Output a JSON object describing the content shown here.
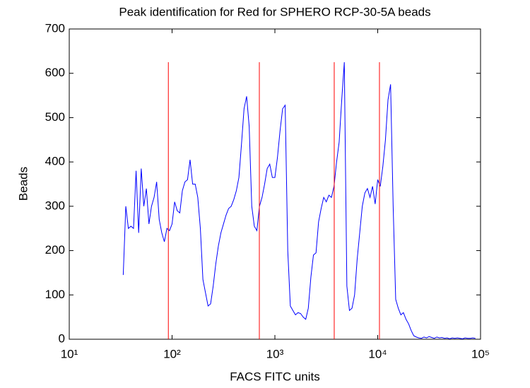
{
  "chart_data": {
    "type": "line",
    "title": "Peak identification for Red for SPHERO RCP-30-5A beads",
    "xlabel": "FACS FITC units",
    "ylabel": "Beads",
    "xscale": "log",
    "xlim": [
      10,
      100000
    ],
    "ylim": [
      0,
      700
    ],
    "xticks": [
      {
        "value": 10,
        "label": "10¹"
      },
      {
        "value": 100,
        "label": "10²"
      },
      {
        "value": 1000,
        "label": "10³"
      },
      {
        "value": 10000,
        "label": "10⁴"
      },
      {
        "value": 100000,
        "label": "10⁵"
      }
    ],
    "yticks": [
      0,
      100,
      200,
      300,
      400,
      500,
      600,
      700
    ],
    "grid": false,
    "x": [
      33.5,
      35.48,
      37.58,
      39.81,
      42.17,
      44.67,
      47.32,
      50.12,
      53.09,
      56.23,
      59.57,
      63.1,
      66.83,
      70.79,
      74.99,
      79.43,
      84.14,
      89.13,
      94.41,
      100,
      105.9,
      112.2,
      118.9,
      125.9,
      133.4,
      141.3,
      149.6,
      158.5,
      167.9,
      177.8,
      188.4,
      199.5,
      211.3,
      223.9,
      237.1,
      251.2,
      266.1,
      281.8,
      298.5,
      316.2,
      335,
      354.8,
      375.8,
      398.1,
      421.7,
      446.7,
      473.2,
      501.2,
      530.9,
      562.3,
      595.7,
      631,
      668.3,
      707.9,
      749.9,
      794.3,
      841.4,
      891.3,
      944.1,
      1000,
      1059,
      1122,
      1189,
      1259,
      1334,
      1413,
      1496,
      1585,
      1679,
      1778,
      1884,
      1995,
      2113,
      2239,
      2371,
      2512,
      2661,
      2818,
      2985,
      3162,
      3350,
      3548,
      3758,
      3981,
      4217,
      4467,
      4732,
      5012,
      5309,
      5623,
      5957,
      6310,
      6683,
      7079,
      7499,
      7943,
      8414,
      8913,
      9441,
      10000,
      10590,
      11220,
      11890,
      12590,
      13340,
      14130,
      14960,
      15850,
      16790,
      17780,
      18840,
      19950,
      21130,
      22390,
      23710,
      25120,
      26610,
      28180,
      29850,
      31620,
      33500,
      35480,
      37580,
      39810,
      42170,
      44670,
      47320,
      50120,
      53090,
      56230,
      59570,
      63100,
      66830,
      70790,
      74990,
      79430,
      84140,
      89130
    ],
    "series": [
      {
        "color": "#0000ff",
        "values": [
          145,
          300,
          250,
          255,
          250,
          380,
          240,
          385,
          300,
          340,
          260,
          300,
          320,
          355,
          270,
          240,
          220,
          250,
          245,
          260,
          310,
          290,
          285,
          335,
          355,
          360,
          405,
          350,
          350,
          320,
          250,
          135,
          105,
          75,
          80,
          120,
          170,
          210,
          240,
          260,
          280,
          295,
          300,
          315,
          335,
          365,
          440,
          520,
          548,
          480,
          300,
          255,
          245,
          300,
          320,
          350,
          385,
          395,
          365,
          365,
          410,
          470,
          520,
          528,
          200,
          75,
          65,
          55,
          60,
          58,
          50,
          45,
          70,
          140,
          190,
          195,
          265,
          295,
          320,
          310,
          325,
          320,
          345,
          400,
          445,
          540,
          625,
          120,
          65,
          70,
          100,
          180,
          240,
          300,
          330,
          340,
          320,
          345,
          305,
          360,
          345,
          390,
          450,
          540,
          575,
          300,
          90,
          70,
          55,
          60,
          45,
          35,
          20,
          8,
          5,
          3,
          2,
          5,
          3,
          6,
          4,
          2,
          5,
          3,
          4,
          2,
          3,
          1,
          3,
          2,
          3,
          2,
          1,
          3,
          2,
          2,
          3,
          2
        ]
      }
    ],
    "peaks": {
      "x": [
        92,
        706,
        3776,
        10400
      ],
      "height": 625,
      "color": "#ff0000"
    }
  }
}
